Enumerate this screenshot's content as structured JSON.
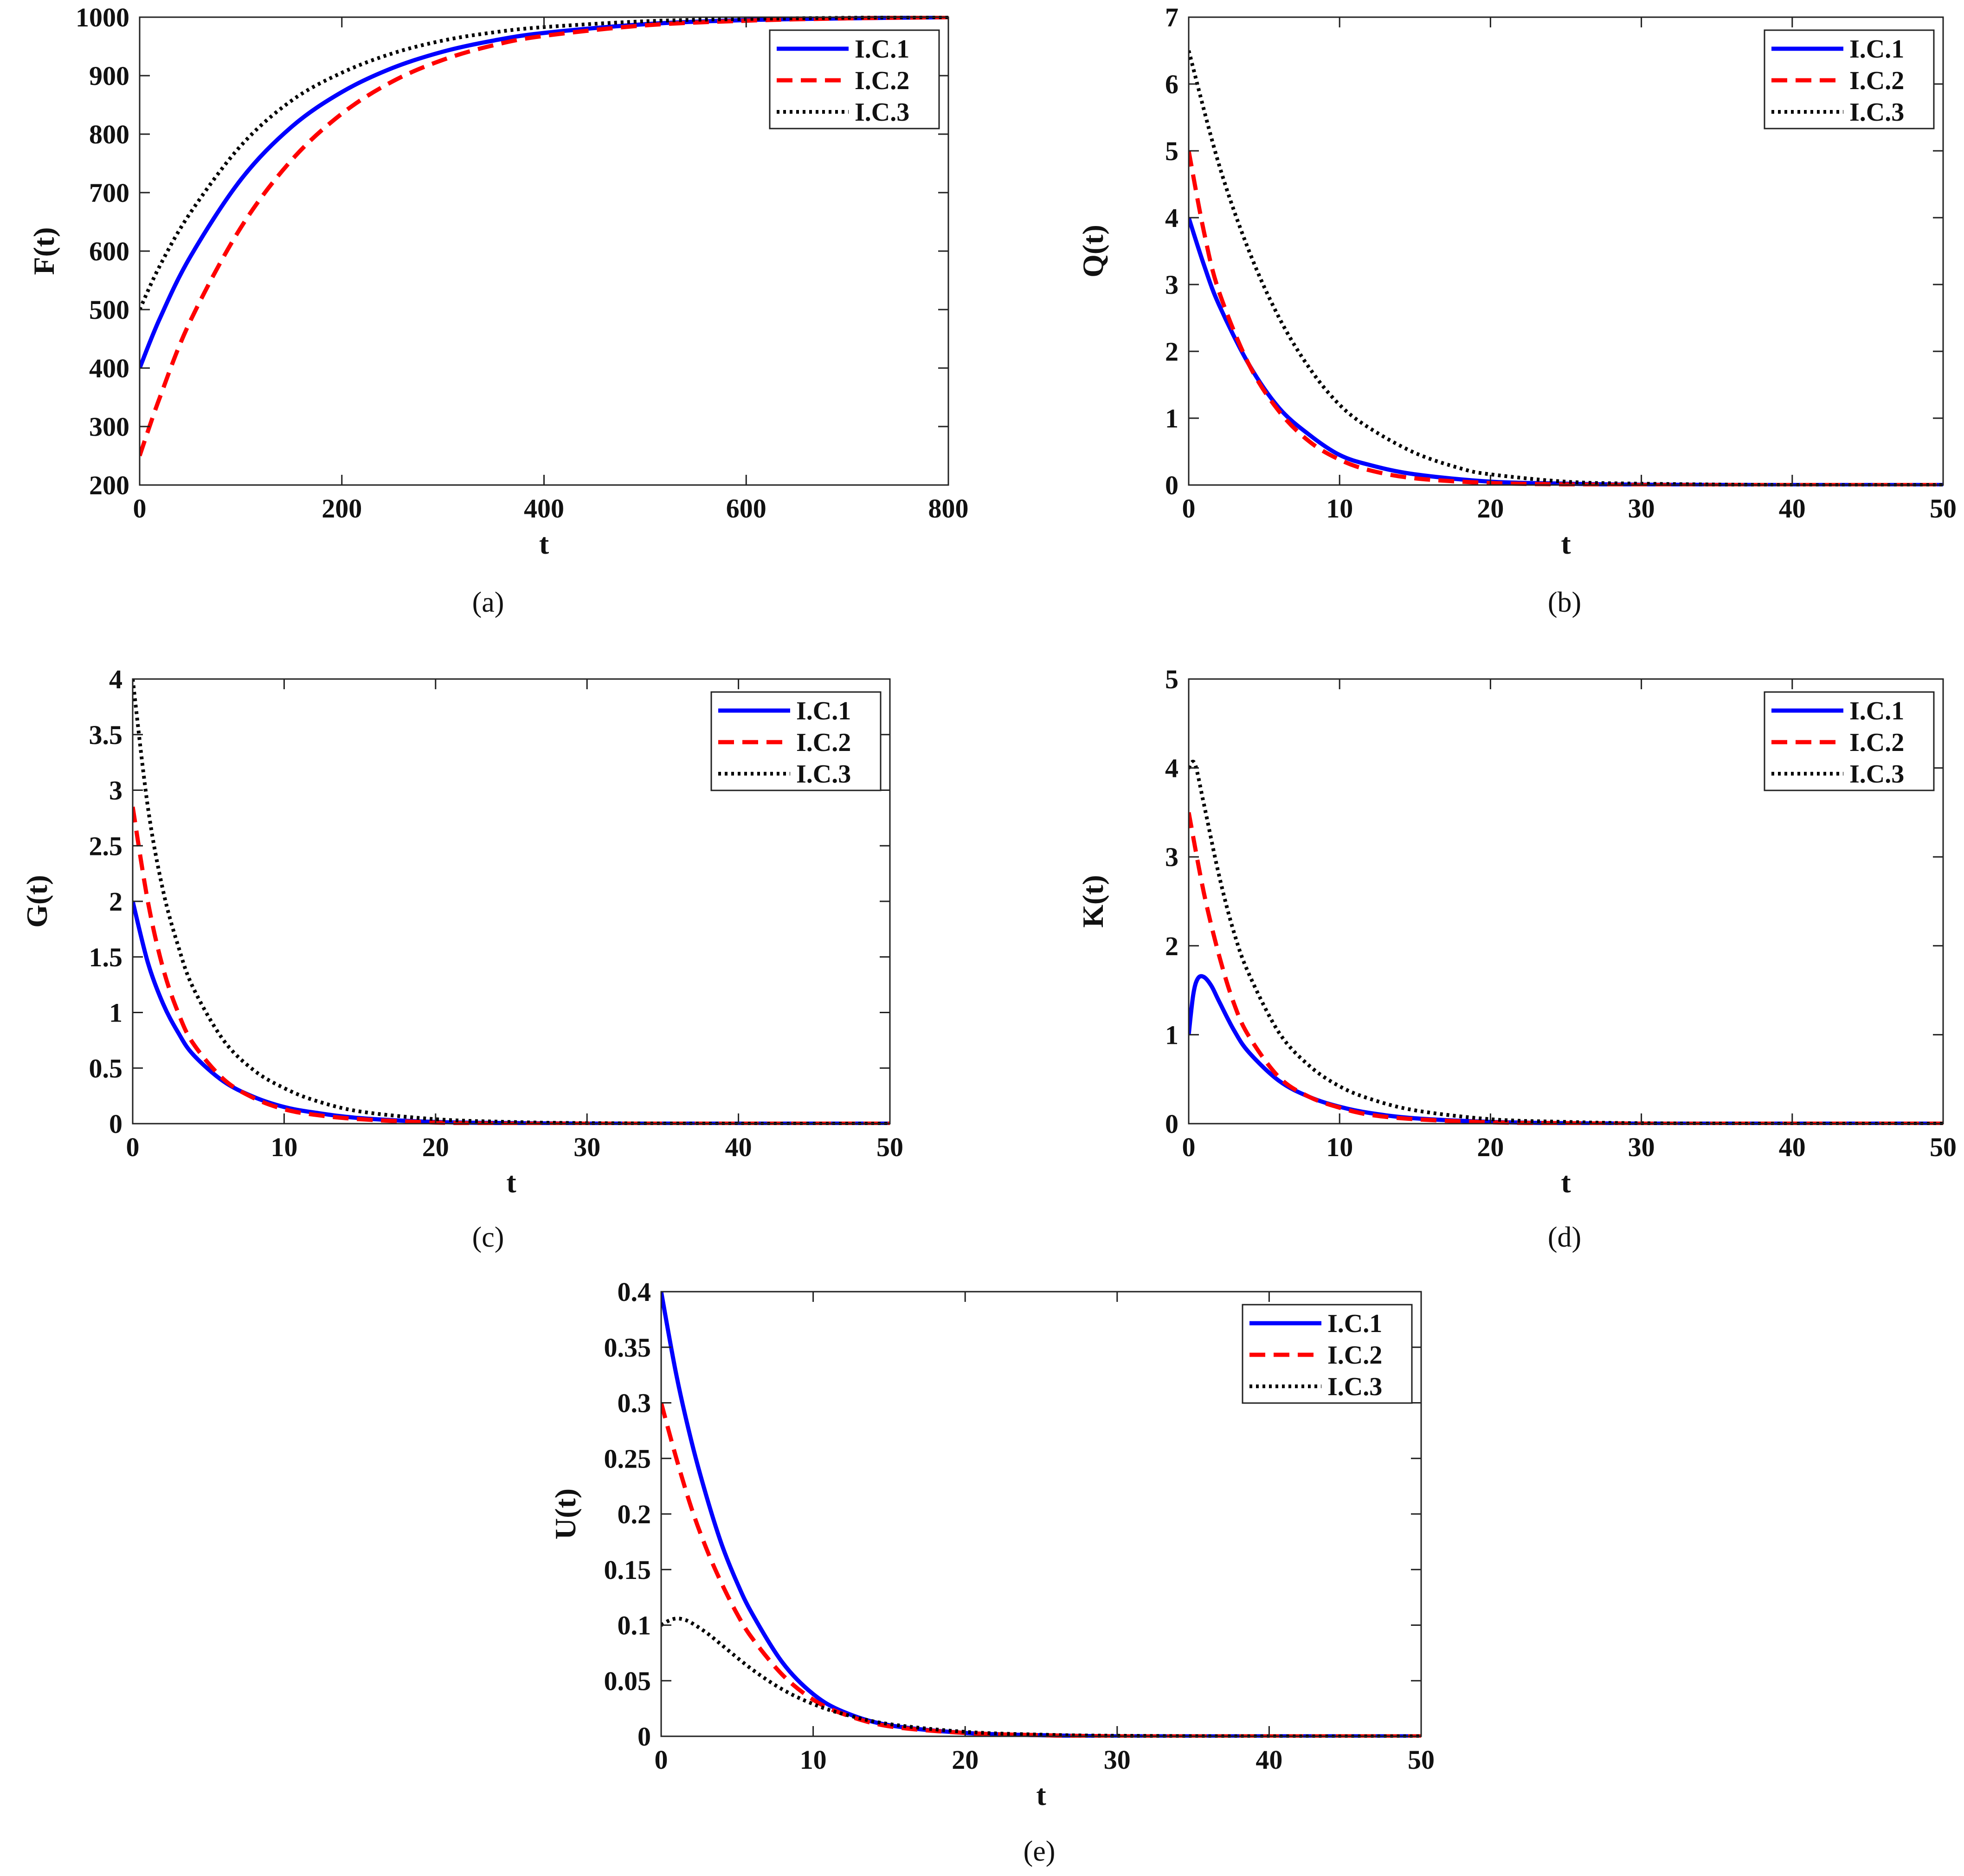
{
  "styles": {
    "I.C.1": {
      "color": "#0000ff",
      "dash": "solid"
    },
    "I.C.2": {
      "color": "#ff0000",
      "dash": "dashed"
    },
    "I.C.3": {
      "color": "#000000",
      "dash": "dotted"
    }
  },
  "chart_data": [
    {
      "caption": "(a)",
      "type": "line",
      "xlabel": "t",
      "ylabel": "F(t)",
      "xlim": [
        0,
        800
      ],
      "ylim": [
        200,
        1000
      ],
      "xticks": [
        0,
        200,
        400,
        600,
        800
      ],
      "yticks": [
        200,
        300,
        400,
        500,
        600,
        700,
        800,
        900,
        1000
      ],
      "legend": "top-right",
      "series": [
        {
          "name": "I.C.1",
          "x": [
            0,
            20,
            50,
            100,
            150,
            200,
            250,
            300,
            350,
            400,
            500,
            600,
            700,
            800
          ],
          "y": [
            400,
            485,
            590,
            722,
            812,
            872,
            913,
            941,
            960,
            973,
            988,
            995,
            998,
            1000
          ]
        },
        {
          "name": "I.C.2",
          "x": [
            0,
            20,
            50,
            100,
            150,
            200,
            250,
            300,
            350,
            400,
            500,
            600,
            700,
            800
          ],
          "y": [
            250,
            350,
            480,
            640,
            755,
            835,
            890,
            927,
            952,
            968,
            986,
            994,
            998,
            1000
          ]
        },
        {
          "name": "I.C.3",
          "x": [
            0,
            20,
            50,
            100,
            150,
            200,
            250,
            300,
            350,
            400,
            500,
            600,
            700,
            800
          ],
          "y": [
            500,
            575,
            665,
            780,
            857,
            905,
            938,
            960,
            974,
            983,
            993,
            997,
            999,
            1000
          ]
        }
      ]
    },
    {
      "caption": "(b)",
      "type": "line",
      "xlabel": "t",
      "ylabel": "Q(t)",
      "xlim": [
        0,
        50
      ],
      "ylim": [
        0,
        7
      ],
      "xticks": [
        0,
        10,
        20,
        30,
        40,
        50
      ],
      "yticks": [
        0,
        1,
        2,
        3,
        4,
        5,
        6,
        7
      ],
      "legend": "top-right",
      "series": [
        {
          "name": "I.C.1",
          "x": [
            0,
            1,
            2,
            4,
            6,
            8,
            10,
            12,
            15,
            20,
            25,
            30,
            40,
            50
          ],
          "y": [
            4.0,
            3.3,
            2.7,
            1.8,
            1.15,
            0.75,
            0.45,
            0.3,
            0.16,
            0.05,
            0.02,
            0.005,
            0.0,
            0.0
          ]
        },
        {
          "name": "I.C.2",
          "x": [
            0,
            1,
            2,
            4,
            6,
            8,
            10,
            12,
            15,
            20,
            25,
            30,
            40,
            50
          ],
          "y": [
            5.0,
            3.8,
            2.9,
            1.8,
            1.1,
            0.65,
            0.38,
            0.22,
            0.1,
            0.03,
            0.01,
            0.0,
            0.0,
            0.0
          ]
        },
        {
          "name": "I.C.3",
          "x": [
            0,
            2,
            4,
            6,
            8,
            10,
            12,
            15,
            18,
            20,
            25,
            30,
            40,
            50
          ],
          "y": [
            6.5,
            4.8,
            3.5,
            2.5,
            1.75,
            1.2,
            0.85,
            0.48,
            0.25,
            0.16,
            0.05,
            0.02,
            0.0,
            0.0
          ]
        }
      ]
    },
    {
      "caption": "(c)",
      "type": "line",
      "xlabel": "t",
      "ylabel": "G(t)",
      "xlim": [
        0,
        50
      ],
      "ylim": [
        0,
        4
      ],
      "xticks": [
        0,
        10,
        20,
        30,
        40,
        50
      ],
      "yticks": [
        0,
        0.5,
        1,
        1.5,
        2,
        2.5,
        3,
        3.5,
        4
      ],
      "legend": "top-right",
      "series": [
        {
          "name": "I.C.1",
          "x": [
            0,
            1,
            2,
            3,
            4,
            6,
            8,
            10,
            12,
            15,
            20,
            25,
            30,
            40,
            50
          ],
          "y": [
            2.0,
            1.45,
            1.08,
            0.82,
            0.62,
            0.38,
            0.24,
            0.15,
            0.1,
            0.05,
            0.015,
            0.005,
            0.0,
            0.0,
            0.0
          ]
        },
        {
          "name": "I.C.2",
          "x": [
            0,
            1,
            2,
            3,
            4,
            6,
            8,
            10,
            12,
            15,
            20,
            25,
            30,
            40,
            50
          ],
          "y": [
            2.85,
            2.0,
            1.4,
            1.0,
            0.72,
            0.4,
            0.23,
            0.13,
            0.08,
            0.04,
            0.01,
            0.0,
            0.0,
            0.0,
            0.0
          ]
        },
        {
          "name": "I.C.3",
          "x": [
            0,
            1,
            2,
            3,
            4,
            6,
            8,
            10,
            12,
            15,
            20,
            25,
            30,
            40,
            50
          ],
          "y": [
            4.0,
            2.85,
            2.1,
            1.6,
            1.22,
            0.75,
            0.48,
            0.32,
            0.21,
            0.11,
            0.04,
            0.015,
            0.005,
            0.0,
            0.0
          ]
        }
      ]
    },
    {
      "caption": "(d)",
      "type": "line",
      "xlabel": "t",
      "ylabel": "K(t)",
      "xlim": [
        0,
        50
      ],
      "ylim": [
        0,
        5
      ],
      "xticks": [
        0,
        10,
        20,
        30,
        40,
        50
      ],
      "yticks": [
        0,
        1,
        2,
        3,
        4,
        5
      ],
      "legend": "top-right",
      "series": [
        {
          "name": "I.C.1",
          "x": [
            0,
            0.3,
            0.6,
            1,
            1.5,
            2,
            3,
            4,
            6,
            8,
            10,
            12,
            15,
            20,
            25,
            30,
            40,
            50
          ],
          "y": [
            1.0,
            1.45,
            1.63,
            1.65,
            1.55,
            1.38,
            1.05,
            0.8,
            0.48,
            0.3,
            0.19,
            0.12,
            0.06,
            0.02,
            0.005,
            0.0,
            0.0,
            0.0
          ]
        },
        {
          "name": "I.C.2",
          "x": [
            0,
            1,
            2,
            3,
            4,
            6,
            8,
            10,
            12,
            15,
            20,
            25,
            30,
            40,
            50
          ],
          "y": [
            3.5,
            2.6,
            1.9,
            1.35,
            0.98,
            0.52,
            0.3,
            0.18,
            0.1,
            0.05,
            0.015,
            0.005,
            0.0,
            0.0,
            0.0
          ]
        },
        {
          "name": "I.C.3",
          "x": [
            0,
            0.4,
            1,
            2,
            3,
            4,
            6,
            8,
            10,
            12,
            15,
            20,
            25,
            30,
            40,
            50
          ],
          "y": [
            4.0,
            4.05,
            3.6,
            2.8,
            2.15,
            1.68,
            1.02,
            0.65,
            0.42,
            0.28,
            0.15,
            0.05,
            0.02,
            0.005,
            0.0,
            0.0
          ]
        }
      ]
    },
    {
      "caption": "(e)",
      "type": "line",
      "xlabel": "t",
      "ylabel": "U(t)",
      "xlim": [
        0,
        50
      ],
      "ylim": [
        0,
        0.4
      ],
      "xticks": [
        0,
        10,
        20,
        30,
        40,
        50
      ],
      "yticks": [
        0,
        0.05,
        0.1,
        0.15,
        0.2,
        0.25,
        0.3,
        0.35,
        0.4
      ],
      "legend": "top-right",
      "series": [
        {
          "name": "I.C.1",
          "x": [
            0,
            1,
            2,
            3,
            4,
            5,
            6,
            8,
            10,
            12,
            15,
            20,
            25,
            30,
            40,
            50
          ],
          "y": [
            0.4,
            0.325,
            0.265,
            0.215,
            0.172,
            0.138,
            0.11,
            0.066,
            0.038,
            0.022,
            0.01,
            0.003,
            0.001,
            0.0,
            0.0,
            0.0
          ]
        },
        {
          "name": "I.C.2",
          "x": [
            0,
            1,
            2,
            3,
            4,
            5,
            6,
            8,
            10,
            12,
            15,
            20,
            25,
            30,
            40,
            50
          ],
          "y": [
            0.3,
            0.25,
            0.205,
            0.168,
            0.137,
            0.11,
            0.088,
            0.055,
            0.033,
            0.02,
            0.009,
            0.003,
            0.001,
            0.0,
            0.0,
            0.0
          ]
        },
        {
          "name": "I.C.3",
          "x": [
            0,
            0.5,
            1,
            1.5,
            2,
            3,
            4,
            6,
            8,
            10,
            12,
            15,
            20,
            25,
            30,
            40,
            50
          ],
          "y": [
            0.1,
            0.104,
            0.106,
            0.105,
            0.102,
            0.093,
            0.082,
            0.06,
            0.042,
            0.029,
            0.02,
            0.011,
            0.004,
            0.0015,
            0.0005,
            0.0,
            0.0
          ]
        }
      ]
    }
  ]
}
